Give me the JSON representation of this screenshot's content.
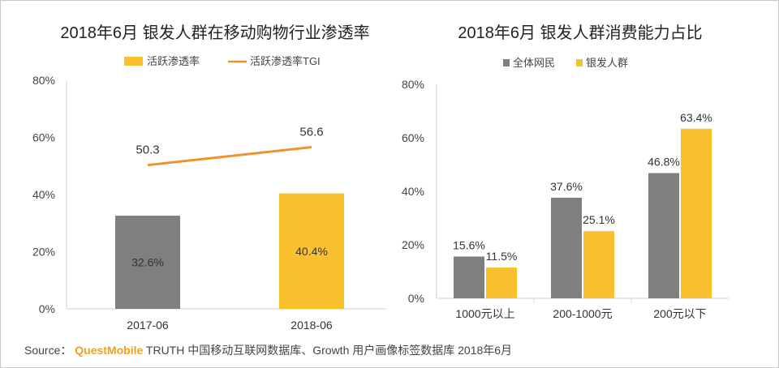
{
  "chart_data": [
    {
      "type": "bar+line",
      "title": "2018年6月 银发人群在移动购物行业渗透率",
      "categories": [
        "2017-06",
        "2018-06"
      ],
      "series": [
        {
          "name": "活跃渗透率",
          "kind": "bar",
          "values": [
            32.6,
            40.4
          ],
          "labels": [
            "32.6%",
            "40.4%"
          ],
          "colors": [
            "#7f7f7f",
            "#fbc02d"
          ]
        },
        {
          "name": "活跃渗透率TGI",
          "kind": "line",
          "values": [
            50.3,
            56.6
          ],
          "labels": [
            "50.3",
            "56.6"
          ],
          "color": "#f0922b"
        }
      ],
      "y_ticks": [
        "0%",
        "20%",
        "40%",
        "60%",
        "80%"
      ],
      "ylim": [
        0,
        80
      ]
    },
    {
      "type": "bar",
      "title": "2018年6月 银发人群消费能力占比",
      "categories": [
        "1000元以上",
        "200-1000元",
        "200元以下"
      ],
      "series": [
        {
          "name": "全体网民",
          "values": [
            15.6,
            37.6,
            46.8
          ],
          "labels": [
            "15.6%",
            "37.6%",
            "46.8%"
          ],
          "color": "#7f7f7f"
        },
        {
          "name": "银发人群",
          "values": [
            11.5,
            25.1,
            63.4
          ],
          "labels": [
            "11.5%",
            "25.1%",
            "63.4%"
          ],
          "color": "#fbc02d"
        }
      ],
      "y_ticks": [
        "0%",
        "20%",
        "40%",
        "60%",
        "80%"
      ],
      "ylim": [
        0,
        80
      ]
    }
  ],
  "source": {
    "prefix": "Source：",
    "brand": "QuestMobile",
    "text": " TRUTH 中国移动互联网数据库、Growth 用户画像标签数据库 2018年6月"
  }
}
